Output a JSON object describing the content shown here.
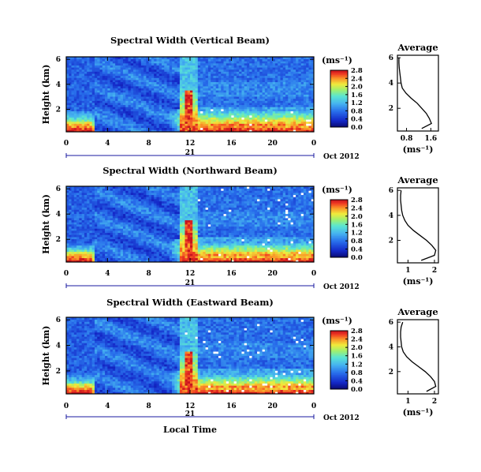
{
  "figure": {
    "date_label": "Oct 2012",
    "day_label": "21",
    "xlabel": "Local Time",
    "ylabel": "Height (km)",
    "avg_title": "Average",
    "unit_label": "(ms⁻¹)"
  },
  "chart_data": [
    {
      "type": "heatmap",
      "title": "Spectral Width (Vertical Beam)",
      "xlabel": "Local Time",
      "ylabel": "Height (km)",
      "x_ticks": [
        "0",
        "4",
        "8",
        "12",
        "16",
        "20",
        "0"
      ],
      "y_ticks": [
        "2",
        "4",
        "6"
      ],
      "xlim": [
        0,
        24
      ],
      "ylim": [
        0.2,
        6.2
      ],
      "colorbar": {
        "label": "(ms⁻¹)",
        "range": [
          0,
          2.8
        ],
        "ticks": [
          "0.0",
          "0.4",
          "0.8",
          "1.2",
          "1.6",
          "2.0",
          "2.4",
          "2.8"
        ]
      },
      "average_profile": {
        "title": "Average",
        "xlabel": "(ms⁻¹)",
        "x_ticks": [
          "0.8",
          "1.6"
        ],
        "xlim": [
          0.5,
          1.85
        ],
        "y_ticks": [
          "2",
          "4",
          "6"
        ],
        "height": [
          0.4,
          0.8,
          1.2,
          1.6,
          2.0,
          2.4,
          2.8,
          3.2,
          3.6,
          4.0,
          4.4,
          4.8,
          5.2,
          5.6,
          6.0
        ],
        "value": [
          1.3,
          1.62,
          1.55,
          1.45,
          1.3,
          1.15,
          0.95,
          0.78,
          0.66,
          0.62,
          0.6,
          0.58,
          0.56,
          0.55,
          0.55
        ]
      }
    },
    {
      "type": "heatmap",
      "title": "Spectral Width (Northward Beam)",
      "xlabel": "Local Time",
      "ylabel": "Height (km)",
      "x_ticks": [
        "0",
        "4",
        "8",
        "12",
        "16",
        "20",
        "0"
      ],
      "y_ticks": [
        "2",
        "4",
        "6"
      ],
      "xlim": [
        0,
        24
      ],
      "ylim": [
        0.2,
        6.2
      ],
      "colorbar": {
        "label": "(ms⁻¹)",
        "range": [
          0,
          2.8
        ],
        "ticks": [
          "0.0",
          "0.4",
          "0.8",
          "1.2",
          "1.6",
          "2.0",
          "2.4",
          "2.8"
        ]
      },
      "average_profile": {
        "title": "Average",
        "xlabel": "(ms⁻¹)",
        "x_ticks": [
          "1",
          "2"
        ],
        "xlim": [
          0.6,
          2.15
        ],
        "y_ticks": [
          "2",
          "4",
          "6"
        ],
        "height": [
          0.4,
          0.8,
          1.2,
          1.6,
          2.0,
          2.4,
          2.8,
          3.2,
          3.6,
          4.0,
          4.4,
          4.8,
          5.2,
          5.6,
          6.0
        ],
        "value": [
          1.5,
          2.0,
          2.05,
          1.9,
          1.7,
          1.45,
          1.2,
          1.0,
          0.88,
          0.8,
          0.76,
          0.74,
          0.72,
          0.72,
          0.74
        ]
      }
    },
    {
      "type": "heatmap",
      "title": "Spectral Width (Eastward Beam)",
      "xlabel": "Local Time",
      "ylabel": "Height (km)",
      "x_ticks": [
        "0",
        "4",
        "8",
        "12",
        "16",
        "20",
        "0"
      ],
      "y_ticks": [
        "2",
        "4",
        "6"
      ],
      "xlim": [
        0,
        24
      ],
      "ylim": [
        0.2,
        6.2
      ],
      "colorbar": {
        "label": "(ms⁻¹)",
        "range": [
          0,
          2.8
        ],
        "ticks": [
          "0.0",
          "0.4",
          "0.8",
          "1.2",
          "1.6",
          "2.0",
          "2.4",
          "2.8"
        ]
      },
      "average_profile": {
        "title": "Average",
        "xlabel": "(ms⁻¹)",
        "x_ticks": [
          "1",
          "2"
        ],
        "xlim": [
          0.6,
          2.15
        ],
        "y_ticks": [
          "2",
          "4",
          "6"
        ],
        "height": [
          0.4,
          0.8,
          1.2,
          1.6,
          2.0,
          2.4,
          2.8,
          3.2,
          3.6,
          4.0,
          4.4,
          4.8,
          5.2,
          5.6,
          6.0
        ],
        "value": [
          1.7,
          2.05,
          2.0,
          1.85,
          1.65,
          1.4,
          1.15,
          0.95,
          0.82,
          0.76,
          0.74,
          0.72,
          0.72,
          0.74,
          0.8
        ]
      }
    }
  ]
}
